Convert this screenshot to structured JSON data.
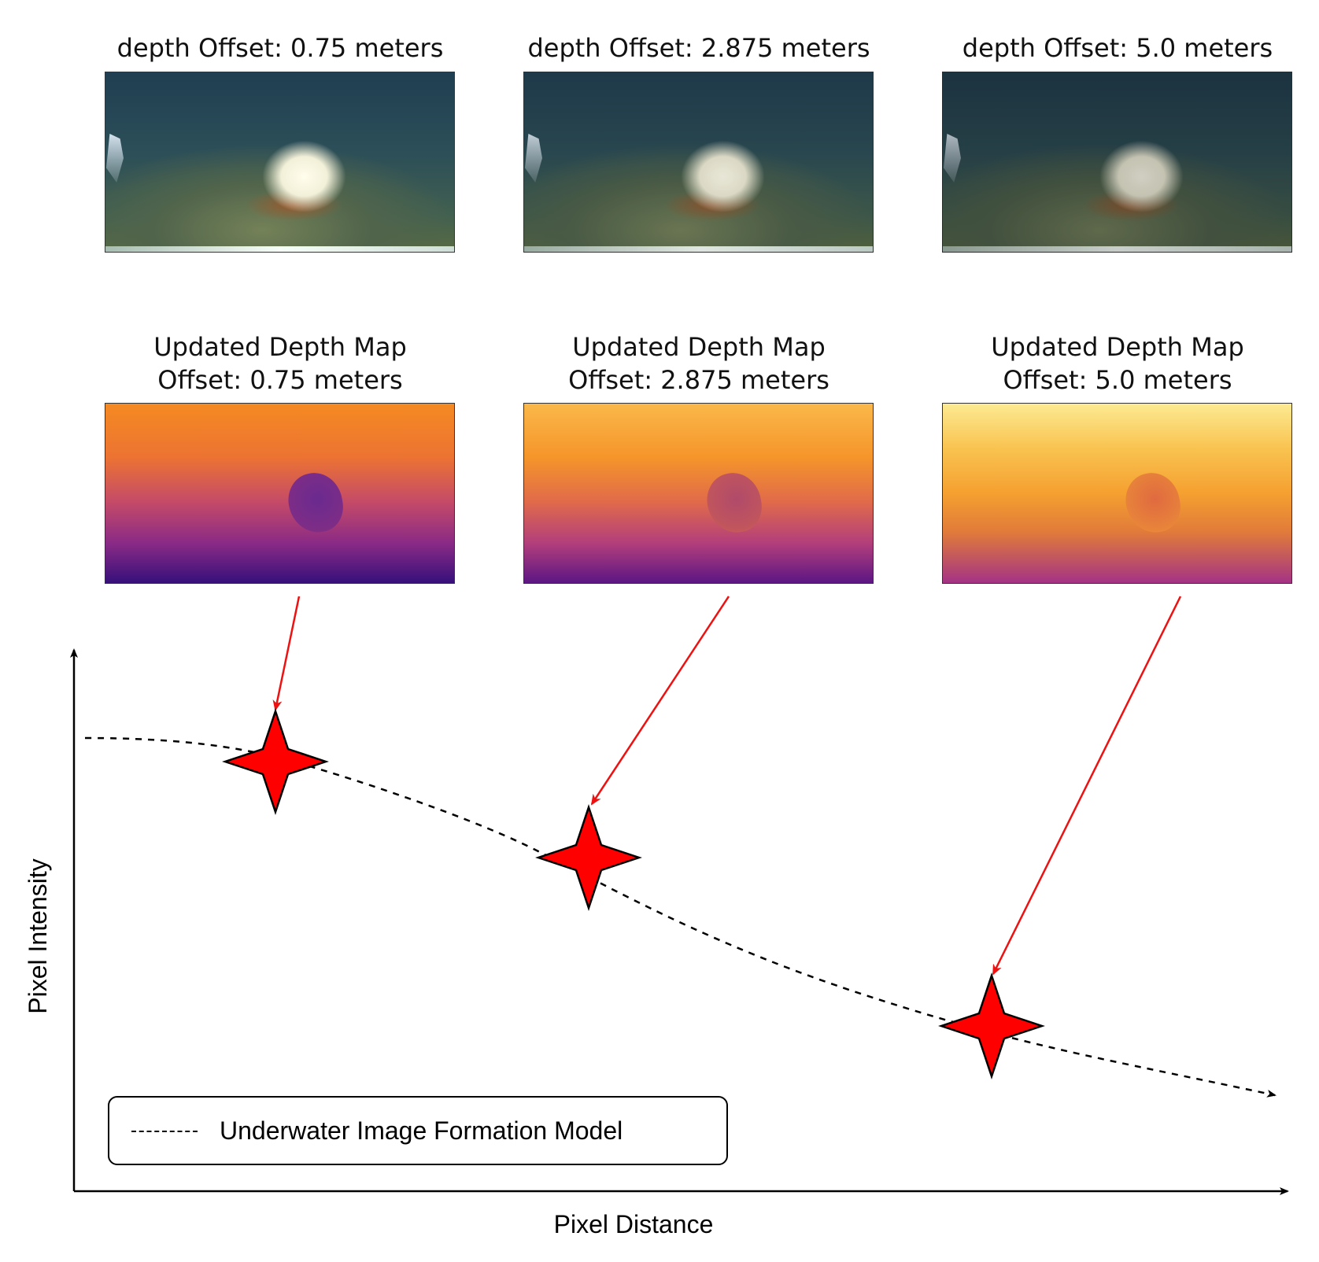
{
  "top_row": [
    {
      "title": "depth Offset: 0.75 meters"
    },
    {
      "title": "depth Offset: 2.875 meters"
    },
    {
      "title": "depth Offset: 5.0 meters"
    }
  ],
  "depth_row": [
    {
      "title_line1": "Updated Depth Map",
      "title_line2": "Offset: 0.75 meters"
    },
    {
      "title_line1": "Updated Depth Map",
      "title_line2": "Offset: 2.875 meters"
    },
    {
      "title_line1": "Updated Depth Map",
      "title_line2": "Offset: 5.0 meters"
    }
  ],
  "plot": {
    "y_label": "Pixel Intensity",
    "x_label": "Pixel Distance",
    "legend": "Underwater Image Formation Model"
  },
  "colors": {
    "marker": "#ff0000",
    "arrow": "#ee1111",
    "axis": "#000000",
    "curve": "#000000"
  }
}
